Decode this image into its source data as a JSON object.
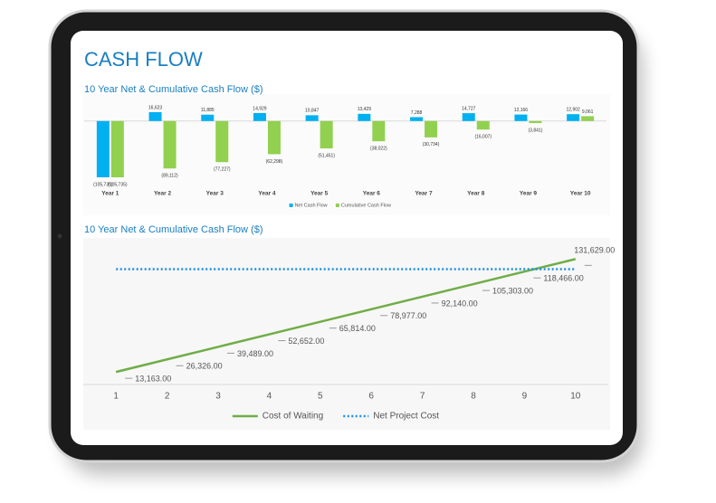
{
  "title": "CASH FLOW",
  "chart_data": [
    {
      "type": "bar",
      "title": "10 Year Net & Cumulative Cash Flow ($)",
      "categories": [
        "Year 1",
        "Year 2",
        "Year 3",
        "Year 4",
        "Year 5",
        "Year 6",
        "Year 7",
        "Year 8",
        "Year 9",
        "Year 10"
      ],
      "series": [
        {
          "name": "Net Cash Flow",
          "color": "#00b0f0",
          "values": [
            -105735,
            16623,
            11885,
            14929,
            10847,
            13429,
            7288,
            14727,
            12166,
            12902
          ],
          "value_labels": [
            "(105,735)",
            "16,623",
            "11,885",
            "14,929",
            "10,847",
            "13,429",
            "7,288",
            "14,727",
            "12,166",
            "12,902"
          ]
        },
        {
          "name": "Cumulative Cash Flow",
          "color": "#92d050",
          "values": [
            -105735,
            -89112,
            -77227,
            -62298,
            -51451,
            -38022,
            -30734,
            -16007,
            -3841,
            9061
          ],
          "value_labels": [
            "(105,735)",
            "(89,112)",
            "(77,227)",
            "(62,298)",
            "(51,451)",
            "(38,022)",
            "(30,734)",
            "(16,007)",
            "(3,841)",
            "9,061"
          ]
        }
      ],
      "ylim": [
        -110000,
        20000
      ],
      "legend": "bottom"
    },
    {
      "type": "line",
      "title": "10 Year Net & Cumulative Cash Flow ($)",
      "categories": [
        "1",
        "2",
        "3",
        "4",
        "5",
        "6",
        "7",
        "8",
        "9",
        "10"
      ],
      "series": [
        {
          "name": "Cost of Waiting",
          "color": "#70ad47",
          "style": "solid",
          "values": [
            13163,
            26326,
            39489,
            52652,
            65814,
            78977,
            92140,
            105303,
            118466,
            131629
          ],
          "value_labels": [
            "13,163.00",
            "26,326.00",
            "39,489.00",
            "52,652.00",
            "65,814.00",
            "78,977.00",
            "92,140.00",
            "105,303.00",
            "118,466.00",
            "131,629.00"
          ]
        },
        {
          "name": "Net Project Cost",
          "color": "#1f8fe0",
          "style": "dotted",
          "values": [
            121000,
            121000,
            121000,
            121000,
            121000,
            121000,
            121000,
            121000,
            121000,
            121000
          ]
        }
      ],
      "ylim": [
        0,
        150000
      ],
      "legend": "bottom"
    }
  ]
}
